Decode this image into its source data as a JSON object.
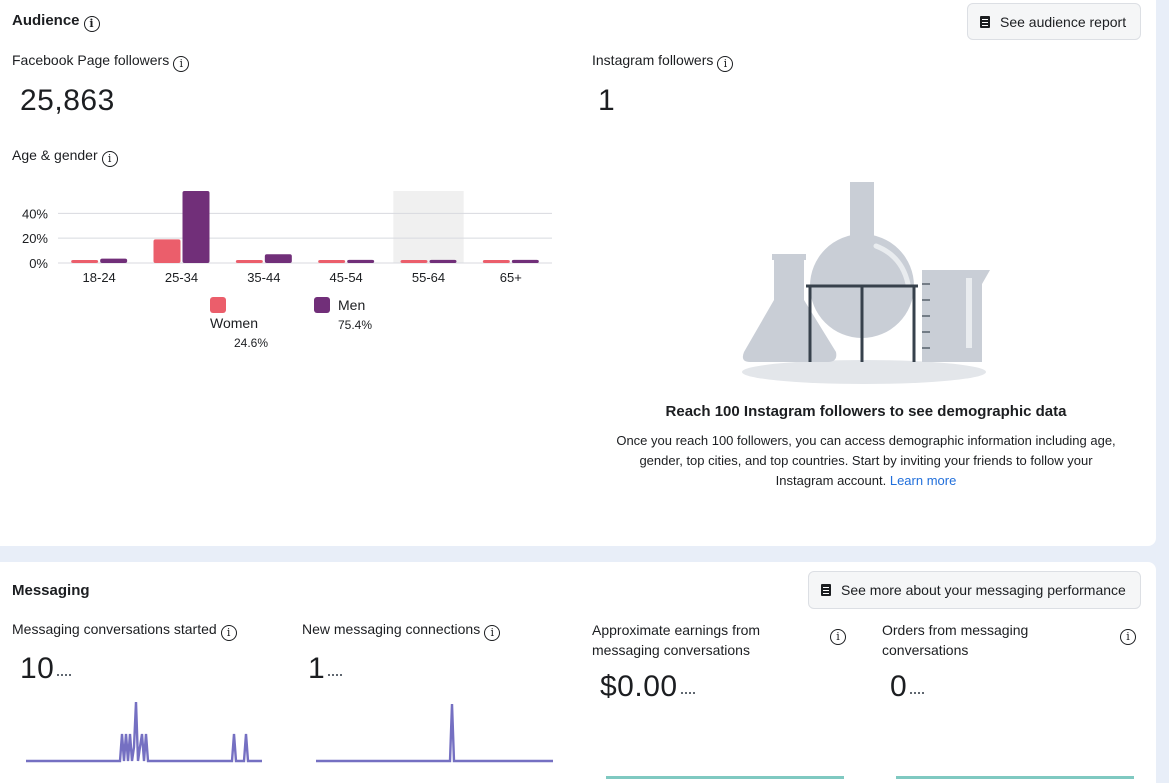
{
  "audience": {
    "title": "Audience",
    "report_button": "See audience report",
    "facebook": {
      "label": "Facebook Page followers",
      "value": "25,863"
    },
    "instagram": {
      "label": "Instagram followers",
      "value": "1"
    },
    "age_gender_label": "Age & gender",
    "legend": [
      {
        "name": "Women",
        "pct": "24.6%",
        "color": "#eb5e6b"
      },
      {
        "name": "Men",
        "pct": "75.4%",
        "color": "#712f79"
      }
    ],
    "empty_state": {
      "title": "Reach 100 Instagram followers to see demographic data",
      "body": "Once you reach 100 followers, you can access demographic information including age, gender, top cities, and top countries. Start by inviting your friends to follow your Instagram account.",
      "link": "Learn more"
    }
  },
  "chart_data": {
    "type": "bar",
    "title": "Age & gender",
    "categories": [
      "18-24",
      "25-34",
      "35-44",
      "45-54",
      "55-64",
      "65+"
    ],
    "series": [
      {
        "name": "Women",
        "values": [
          1.5,
          19,
          1.5,
          1.5,
          1.5,
          1.5
        ]
      },
      {
        "name": "Men",
        "values": [
          3.5,
          58,
          7,
          2.5,
          2.5,
          2.5
        ]
      }
    ],
    "yticks": [
      "40%",
      "20%",
      "0%"
    ],
    "ylim": [
      0,
      58
    ],
    "highlighted_category": "55-64"
  },
  "messaging": {
    "title": "Messaging",
    "performance_button": "See more about your messaging performance",
    "metrics": [
      {
        "label": "Messaging conversations started",
        "value": "10"
      },
      {
        "label": "New messaging connections",
        "value": "1"
      },
      {
        "label": "Approximate earnings from messaging conversations",
        "value": "$0.00"
      },
      {
        "label": "Orders from messaging conversations",
        "value": "0"
      }
    ]
  }
}
